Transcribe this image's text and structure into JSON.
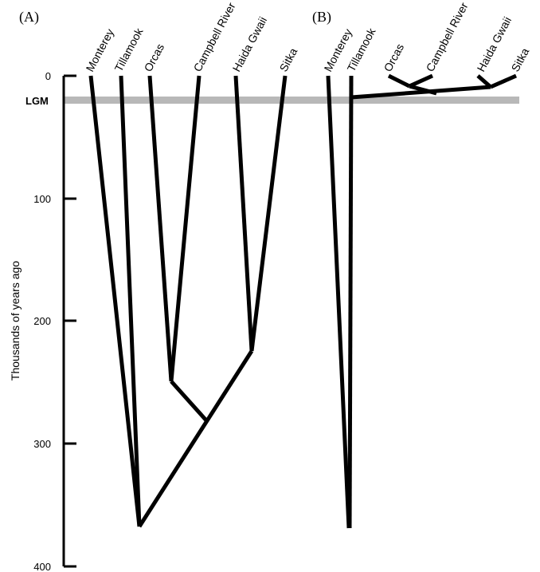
{
  "panels": [
    {
      "label": "(A)",
      "taxa": [
        "Monterey",
        "Tillamook",
        "Orcas",
        "Campbell River",
        "Haida Gwaii",
        "Sitka"
      ]
    },
    {
      "label": "(B)",
      "taxa": [
        "Monterey",
        "Tillamook",
        "Orcas",
        "Campbell River",
        "Haida Gwaii",
        "Sitka"
      ]
    }
  ],
  "axis": {
    "title": "Thousands of years ago",
    "ticks": [
      "0",
      "100",
      "200",
      "300",
      "400"
    ],
    "lgm_label": "LGM"
  },
  "colors": {
    "lgm_band": "#b8b8b8",
    "lines": "#000000"
  }
}
